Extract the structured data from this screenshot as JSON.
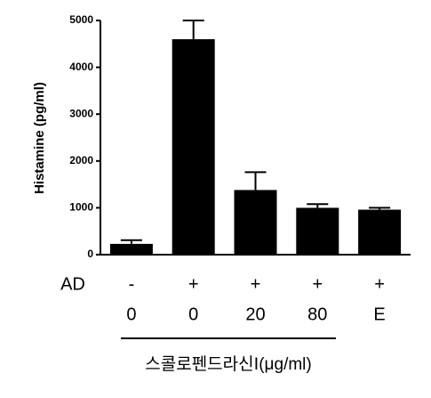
{
  "chart_data": {
    "type": "bar",
    "y_label": "Histamine (pg/ml)",
    "row_title": "AD",
    "ad_labels": [
      "-",
      "+",
      "+",
      "+",
      "+"
    ],
    "categories": [
      "0",
      "0",
      "20",
      "80",
      "E"
    ],
    "group_label": "스콜로펜드라신Ⅰ(μg/ml)",
    "values": [
      230,
      4600,
      1380,
      1000,
      960
    ],
    "errors": [
      80,
      400,
      380,
      80,
      40
    ],
    "color": "#000000",
    "ylim": [
      0,
      5000
    ],
    "yticks": [
      0,
      1000,
      2000,
      3000,
      4000,
      5000
    ]
  }
}
